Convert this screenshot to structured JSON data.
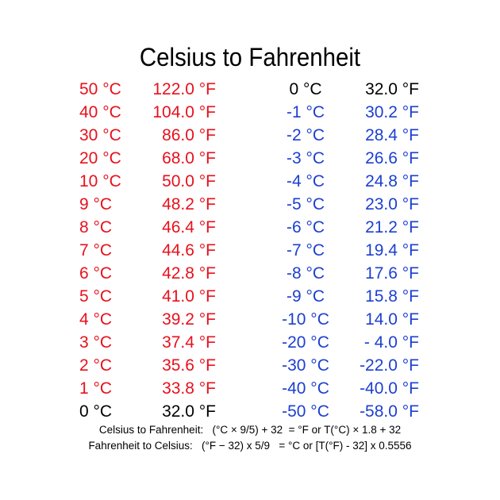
{
  "title": "Celsius to Fahrenheit",
  "colors": {
    "warm": "#e8101c",
    "neutral": "#000000",
    "cold": "#1c3fd0"
  },
  "left_table": [
    {
      "c": "50 °C",
      "f": "122.0 °F",
      "tone": "red"
    },
    {
      "c": "40 °C",
      "f": "104.0 °F",
      "tone": "red"
    },
    {
      "c": "30 °C",
      "f": "86.0 °F",
      "tone": "red"
    },
    {
      "c": "20 °C",
      "f": "68.0 °F",
      "tone": "red"
    },
    {
      "c": "10 °C",
      "f": "50.0 °F",
      "tone": "red"
    },
    {
      "c": "9 °C",
      "f": "48.2 °F",
      "tone": "red"
    },
    {
      "c": "8 °C",
      "f": "46.4 °F",
      "tone": "red"
    },
    {
      "c": "7 °C",
      "f": "44.6 °F",
      "tone": "red"
    },
    {
      "c": "6 °C",
      "f": "42.8 °F",
      "tone": "red"
    },
    {
      "c": "5 °C",
      "f": "41.0 °F",
      "tone": "red"
    },
    {
      "c": "4 °C",
      "f": "39.2 °F",
      "tone": "red"
    },
    {
      "c": "3 °C",
      "f": "37.4 °F",
      "tone": "red"
    },
    {
      "c": "2 °C",
      "f": "35.6 °F",
      "tone": "red"
    },
    {
      "c": "1 °C",
      "f": "33.8 °F",
      "tone": "red"
    },
    {
      "c": "0 °C",
      "f": "32.0 °F",
      "tone": "black"
    }
  ],
  "right_table": [
    {
      "c": "0 °C",
      "f": "32.0 °F",
      "tone": "black"
    },
    {
      "c": "-1 °C",
      "f": "30.2 °F",
      "tone": "blue"
    },
    {
      "c": "-2 °C",
      "f": "28.4 °F",
      "tone": "blue"
    },
    {
      "c": "-3 °C",
      "f": "26.6 °F",
      "tone": "blue"
    },
    {
      "c": "-4 °C",
      "f": "24.8 °F",
      "tone": "blue"
    },
    {
      "c": "-5 °C",
      "f": "23.0 °F",
      "tone": "blue"
    },
    {
      "c": "-6 °C",
      "f": "21.2 °F",
      "tone": "blue"
    },
    {
      "c": "-7 °C",
      "f": "19.4 °F",
      "tone": "blue"
    },
    {
      "c": "-8 °C",
      "f": "17.6 °F",
      "tone": "blue"
    },
    {
      "c": "-9 °C",
      "f": "15.8 °F",
      "tone": "blue"
    },
    {
      "c": "-10 °C",
      "f": "14.0 °F",
      "tone": "blue"
    },
    {
      "c": "-20 °C",
      "f": "-  4.0 °F",
      "tone": "blue"
    },
    {
      "c": "-30 °C",
      "f": "-22.0 °F",
      "tone": "blue"
    },
    {
      "c": "-40 °C",
      "f": "-40.0 °F",
      "tone": "blue"
    },
    {
      "c": "-50 °C",
      "f": "-58.0 °F",
      "tone": "blue"
    }
  ],
  "formulas": {
    "c_to_f": "Celsius to Fahrenheit:   (°C × 9/5) + 32  = °F or T(°C) × 1.8 + 32",
    "f_to_c": "Fahrenheit to Celsius:   (°F − 32) x 5/9   = °C or [T(°F) - 32] x 0.5556"
  }
}
